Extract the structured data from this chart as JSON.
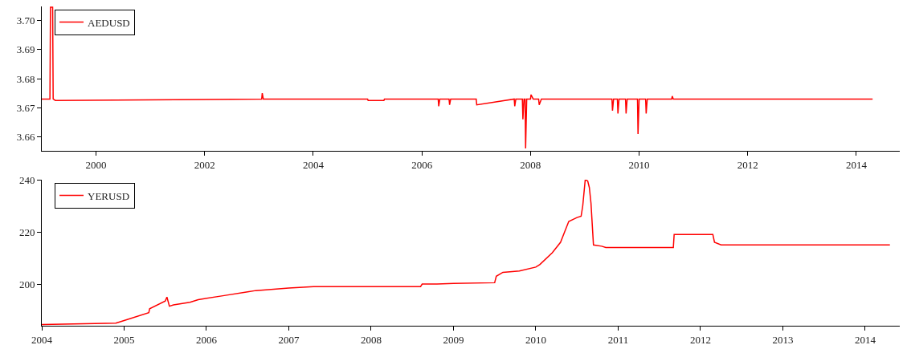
{
  "chart_data": [
    {
      "type": "line",
      "x": [
        1999.0,
        1999.15,
        1999.16,
        1999.2,
        1999.21,
        1999.25,
        2003.05,
        2003.06,
        2003.08,
        2005.0,
        2005.01,
        2005.3,
        2005.31,
        2006.3,
        2006.31,
        2006.33,
        2006.5,
        2006.51,
        2006.53,
        2007.0,
        2007.01,
        2007.7,
        2007.71,
        2007.73,
        2007.85,
        2007.86,
        2007.88,
        2007.9,
        2007.91,
        2007.93,
        2008.0,
        2008.01,
        2008.05,
        2008.15,
        2008.16,
        2008.2,
        2009.4,
        2009.5,
        2009.51,
        2009.53,
        2009.6,
        2009.61,
        2009.63,
        2009.75,
        2009.76,
        2009.78,
        2009.97,
        2009.98,
        2010.0,
        2010.12,
        2010.13,
        2010.15,
        2010.6,
        2010.61,
        2010.63,
        2014.3
      ],
      "series": [
        {
          "name": "AEDUSD",
          "color": "#ff0000",
          "values": [
            3.673,
            3.673,
            3.7045,
            3.7045,
            3.673,
            3.6725,
            3.673,
            3.675,
            3.673,
            3.673,
            3.6725,
            3.6725,
            3.673,
            3.673,
            3.6705,
            3.673,
            3.673,
            3.671,
            3.673,
            3.673,
            3.671,
            3.673,
            3.6705,
            3.673,
            3.673,
            3.666,
            3.673,
            3.673,
            3.656,
            3.673,
            3.673,
            3.6745,
            3.673,
            3.673,
            3.671,
            3.673,
            3.673,
            3.673,
            3.669,
            3.673,
            3.673,
            3.668,
            3.673,
            3.673,
            3.668,
            3.673,
            3.673,
            3.661,
            3.673,
            3.673,
            3.668,
            3.673,
            3.673,
            3.674,
            3.673,
            3.673
          ]
        }
      ],
      "xlim": [
        1999.0,
        2014.8
      ],
      "xticks": [
        2000,
        2002,
        2004,
        2006,
        2008,
        2010,
        2012,
        2014
      ],
      "ylim": [
        3.6552,
        3.7048
      ],
      "yticks": [
        3.66,
        3.67,
        3.68,
        3.69,
        {
          "value": 3.7,
          "label": "3.70"
        }
      ],
      "legend": "top left",
      "grid": false
    },
    {
      "type": "line",
      "x": [
        2004.0,
        2004.9,
        2005.0,
        2005.3,
        2005.31,
        2005.5,
        2005.52,
        2005.55,
        2005.6,
        2005.8,
        2005.9,
        2006.2,
        2006.5,
        2006.6,
        2007.0,
        2007.3,
        2008.6,
        2008.62,
        2008.8,
        2009.0,
        2009.5,
        2009.52,
        2009.6,
        2009.8,
        2010.0,
        2010.05,
        2010.2,
        2010.3,
        2010.35,
        2010.4,
        2010.5,
        2010.55,
        2010.57,
        2010.6,
        2010.63,
        2010.65,
        2010.67,
        2010.7,
        2010.8,
        2010.85,
        2011.67,
        2011.68,
        2012.15,
        2012.17,
        2012.25,
        2013.0,
        2014.3
      ],
      "series": [
        {
          "name": "YERUSD",
          "color": "#ff0000",
          "values": [
            184.5,
            185,
            186,
            189,
            190.5,
            193.5,
            195,
            191.5,
            192,
            193,
            194,
            195.5,
            197,
            197.5,
            198.5,
            199,
            199,
            200,
            200,
            200.2,
            200.5,
            203,
            204.5,
            205,
            206.5,
            207.5,
            212,
            216,
            220,
            224,
            225.5,
            226,
            230,
            240,
            239.5,
            237,
            231,
            215,
            214.5,
            214,
            214,
            219,
            219,
            216,
            215,
            215,
            215
          ]
        }
      ],
      "xlim": [
        2004.0,
        2014.42
      ],
      "xticks": [
        2004,
        2005,
        2006,
        2007,
        2008,
        2009,
        2010,
        2011,
        2012,
        2013,
        2014
      ],
      "ylim": [
        184,
        240
      ],
      "yticks": [
        200,
        220,
        240
      ],
      "legend": "top left",
      "grid": false
    }
  ]
}
